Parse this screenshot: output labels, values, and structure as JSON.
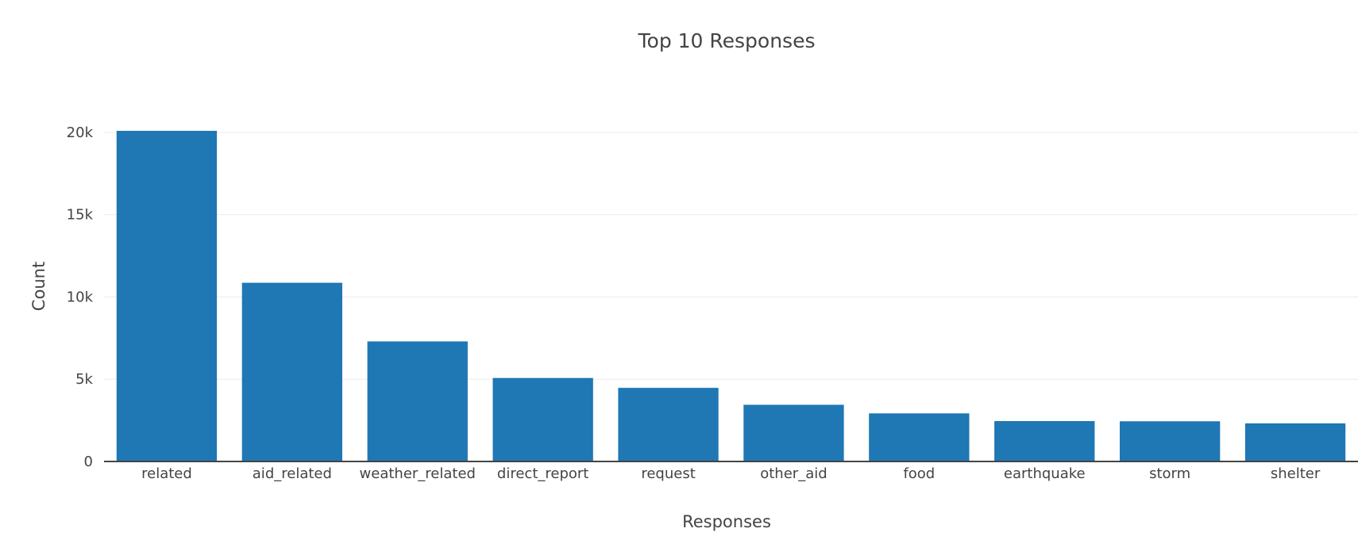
{
  "chart_data": {
    "type": "bar",
    "title": "Top 10 Responses",
    "xlabel": "Responses",
    "ylabel": "Count",
    "categories": [
      "related",
      "aid_related",
      "weather_related",
      "direct_report",
      "request",
      "other_aid",
      "food",
      "earthquake",
      "storm",
      "shelter"
    ],
    "values": [
      20094,
      10860,
      7297,
      5075,
      4474,
      3446,
      2923,
      2455,
      2443,
      2314
    ],
    "ylim": [
      0,
      20094
    ],
    "yticks": [
      0,
      5000,
      10000,
      15000,
      20000
    ],
    "ytick_labels": [
      "0",
      "5k",
      "10k",
      "15k",
      "20k"
    ],
    "grid": true,
    "bar_color": "#1f77b4"
  }
}
